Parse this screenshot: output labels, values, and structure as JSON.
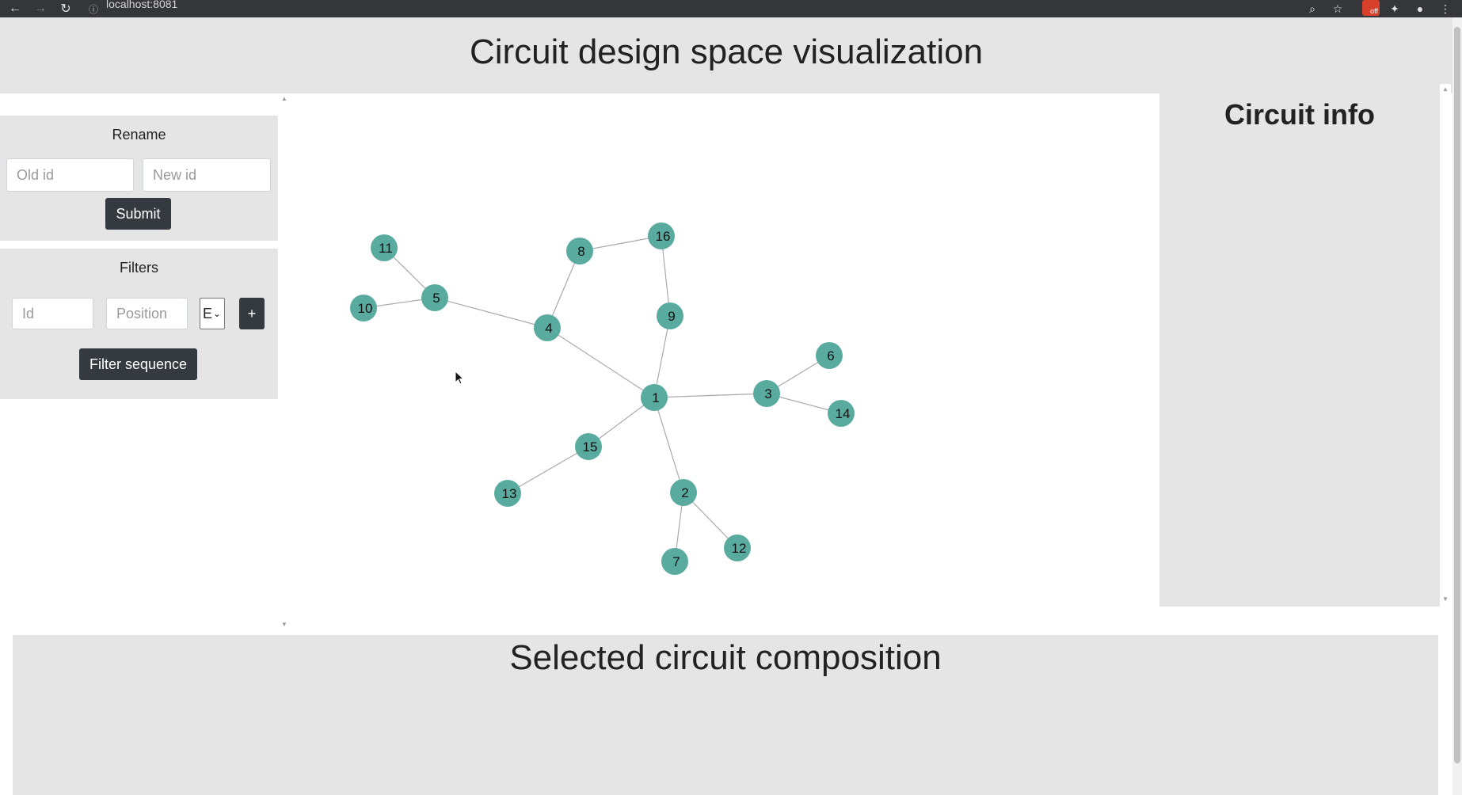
{
  "browser": {
    "url": "localhost:8081",
    "icons": [
      "back-icon",
      "forward-icon",
      "reload-icon",
      "info-icon",
      "zoom-icon",
      "star-icon",
      "extension-off-icon",
      "puzzle-icon",
      "profile-icon",
      "kebab-menu-icon"
    ],
    "extension_badge": "off"
  },
  "header": {
    "title": "Circuit design space visualization"
  },
  "rename": {
    "title": "Rename",
    "old_id_placeholder": "Old id",
    "new_id_placeholder": "New id",
    "submit_label": "Submit"
  },
  "filters": {
    "title": "Filters",
    "id_placeholder": "Id",
    "position_placeholder": "Position",
    "select_value": "E",
    "add_label": "+",
    "filter_button_label": "Filter sequence"
  },
  "graph": {
    "node_color": "#5aab9f",
    "edge_color": "#aaaaaa",
    "nodes": [
      "1",
      "2",
      "3",
      "4",
      "5",
      "6",
      "7",
      "8",
      "9",
      "10",
      "11",
      "12",
      "13",
      "14",
      "15",
      "16"
    ],
    "edges": [
      [
        "11",
        "5"
      ],
      [
        "10",
        "5"
      ],
      [
        "5",
        "4"
      ],
      [
        "4",
        "8"
      ],
      [
        "8",
        "16"
      ],
      [
        "16",
        "9"
      ],
      [
        "9",
        "1"
      ],
      [
        "4",
        "1"
      ],
      [
        "1",
        "3"
      ],
      [
        "3",
        "6"
      ],
      [
        "3",
        "14"
      ],
      [
        "1",
        "15"
      ],
      [
        "15",
        "13"
      ],
      [
        "1",
        "2"
      ],
      [
        "2",
        "7"
      ],
      [
        "2",
        "12"
      ]
    ]
  },
  "info": {
    "title": "Circuit info"
  },
  "composition": {
    "title": "Selected circuit composition"
  }
}
